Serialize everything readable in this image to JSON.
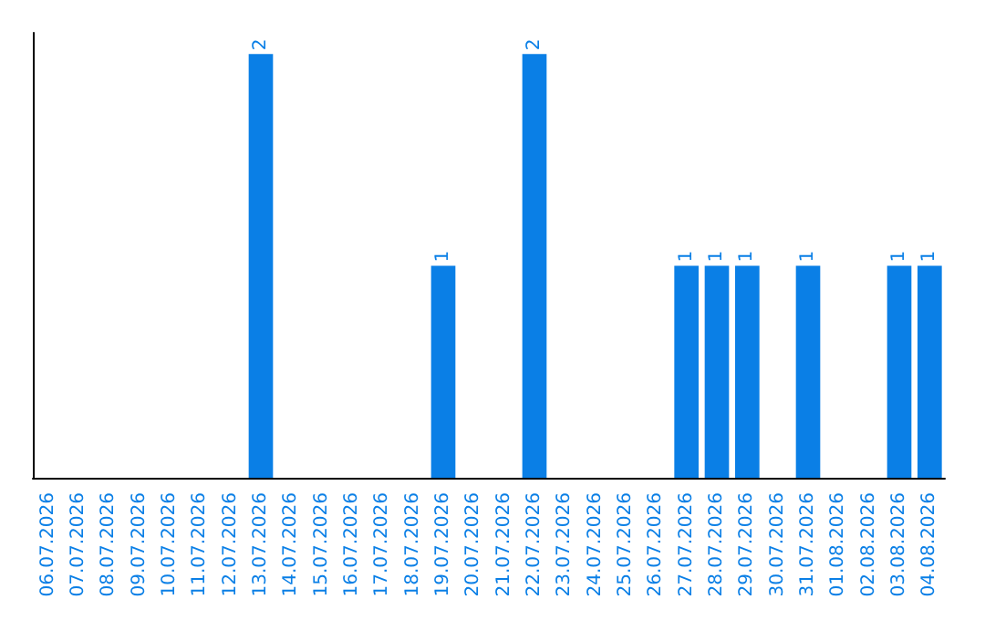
{
  "chart_data": {
    "type": "bar",
    "categories": [
      "06.07.2026",
      "07.07.2026",
      "08.07.2026",
      "09.07.2026",
      "10.07.2026",
      "11.07.2026",
      "12.07.2026",
      "13.07.2026",
      "14.07.2026",
      "15.07.2026",
      "16.07.2026",
      "17.07.2026",
      "18.07.2026",
      "19.07.2026",
      "20.07.2026",
      "21.07.2026",
      "22.07.2026",
      "23.07.2026",
      "24.07.2026",
      "25.07.2026",
      "26.07.2026",
      "27.07.2026",
      "28.07.2026",
      "29.07.2026",
      "30.07.2026",
      "31.07.2026",
      "01.08.2026",
      "02.08.2026",
      "03.08.2026",
      "04.08.2026"
    ],
    "values": [
      0,
      0,
      0,
      0,
      0,
      0,
      0,
      2,
      0,
      0,
      0,
      0,
      0,
      1,
      0,
      0,
      2,
      0,
      0,
      0,
      0,
      1,
      1,
      1,
      0,
      1,
      0,
      0,
      1,
      1
    ],
    "value_labels": [
      null,
      null,
      null,
      null,
      null,
      null,
      null,
      "2",
      null,
      null,
      null,
      null,
      null,
      "1",
      null,
      null,
      "2",
      null,
      null,
      null,
      null,
      "1",
      "1",
      "1",
      null,
      "1",
      null,
      null,
      "1",
      "1"
    ],
    "color": "#0a7fe6",
    "grid": false,
    "tick_labels": "x"
  }
}
